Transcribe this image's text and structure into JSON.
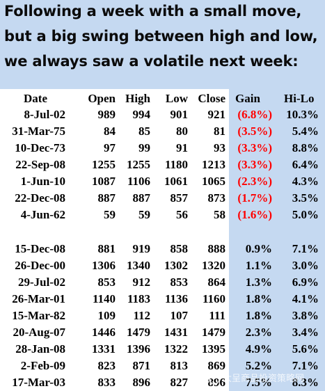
{
  "heading": {
    "lines": [
      "Following a week with a small move,",
      "but a big swing between high and low,",
      "we always saw a volatile next week:"
    ]
  },
  "table": {
    "columns": [
      "Date",
      "Open",
      "High",
      "Low",
      "Close",
      "Gain",
      "Hi-Lo"
    ],
    "group_negative": [
      [
        "8-Jul-02",
        "989",
        "994",
        "901",
        "921",
        "(6.8%)",
        "10.3%"
      ],
      [
        "31-Mar-75",
        "84",
        "85",
        "80",
        "81",
        "(3.5%)",
        "5.4%"
      ],
      [
        "10-Dec-73",
        "97",
        "99",
        "91",
        "93",
        "(3.3%)",
        "8.8%"
      ],
      [
        "22-Sep-08",
        "1255",
        "1255",
        "1180",
        "1213",
        "(3.3%)",
        "6.4%"
      ],
      [
        "1-Jun-10",
        "1087",
        "1106",
        "1061",
        "1065",
        "(2.3%)",
        "4.3%"
      ],
      [
        "22-Dec-08",
        "887",
        "887",
        "857",
        "873",
        "(1.7%)",
        "3.5%"
      ],
      [
        "4-Jun-62",
        "59",
        "59",
        "56",
        "58",
        "(1.6%)",
        "5.0%"
      ]
    ],
    "group_positive": [
      [
        "15-Dec-08",
        "881",
        "919",
        "858",
        "888",
        "0.9%",
        "7.1%"
      ],
      [
        "26-Dec-00",
        "1306",
        "1340",
        "1302",
        "1320",
        "1.1%",
        "3.0%"
      ],
      [
        "29-Jul-02",
        "853",
        "912",
        "853",
        "864",
        "1.3%",
        "6.9%"
      ],
      [
        "26-Mar-01",
        "1140",
        "1183",
        "1136",
        "1160",
        "1.8%",
        "4.1%"
      ],
      [
        "15-Mar-82",
        "109",
        "112",
        "107",
        "111",
        "1.8%",
        "3.8%"
      ],
      [
        "20-Aug-07",
        "1446",
        "1479",
        "1431",
        "1479",
        "2.3%",
        "3.4%"
      ],
      [
        "28-Jan-08",
        "1331",
        "1396",
        "1322",
        "1395",
        "4.9%",
        "5.6%"
      ],
      [
        "2-Feb-09",
        "823",
        "871",
        "813",
        "869",
        "5.2%",
        "7.1%"
      ],
      [
        "17-Mar-03",
        "833",
        "896",
        "827",
        "896",
        "7.5%",
        "8.3%"
      ]
    ]
  },
  "watermark": {
    "text": "大呈商品投资策略网"
  },
  "colors": {
    "panel_blue": "#c5d9f1",
    "panel_white": "#ffffff",
    "negative_red": "#ff0000"
  }
}
